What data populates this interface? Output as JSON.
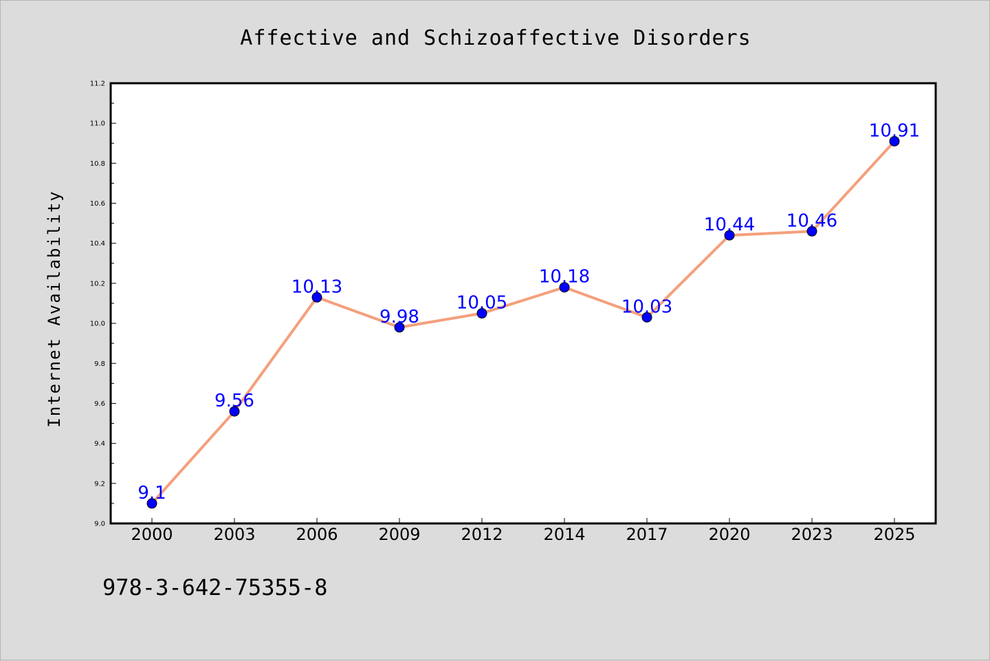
{
  "chart_data": {
    "type": "line",
    "title": "Affective and Schizoaffective Disorders",
    "xlabel": "",
    "ylabel": "Internet Availability",
    "categories": [
      "2000",
      "2003",
      "2006",
      "2009",
      "2012",
      "2014",
      "2017",
      "2020",
      "2023",
      "2025"
    ],
    "series": [
      {
        "values": [
          9.1,
          9.56,
          10.13,
          9.98,
          10.05,
          10.18,
          10.03,
          10.44,
          10.46,
          10.91
        ]
      }
    ],
    "data_labels": [
      "9.1",
      "9.56",
      "10.13",
      "9.98",
      "10.05",
      "10.18",
      "10.03",
      "10.44",
      "10.46",
      "10.91"
    ],
    "ylim": [
      9.0,
      11.2
    ],
    "y_ticks": [
      "9.0",
      "9.2",
      "9.4",
      "9.6",
      "9.8",
      "10.0",
      "10.2",
      "10.4",
      "10.6",
      "10.8",
      "11.0",
      "11.2"
    ],
    "y_tick_values": [
      9.0,
      9.2,
      9.4,
      9.6,
      9.8,
      10.0,
      10.2,
      10.4,
      10.6,
      10.8,
      11.0,
      11.2
    ],
    "grid": false,
    "line_color": "#f4a07c",
    "marker_color": "#0000ff",
    "label_color": "#0000ff",
    "background_color": "#dcdcdc",
    "plot_background_color": "#ffffff"
  },
  "footer": {
    "isbn": "978-3-642-75355-8"
  }
}
